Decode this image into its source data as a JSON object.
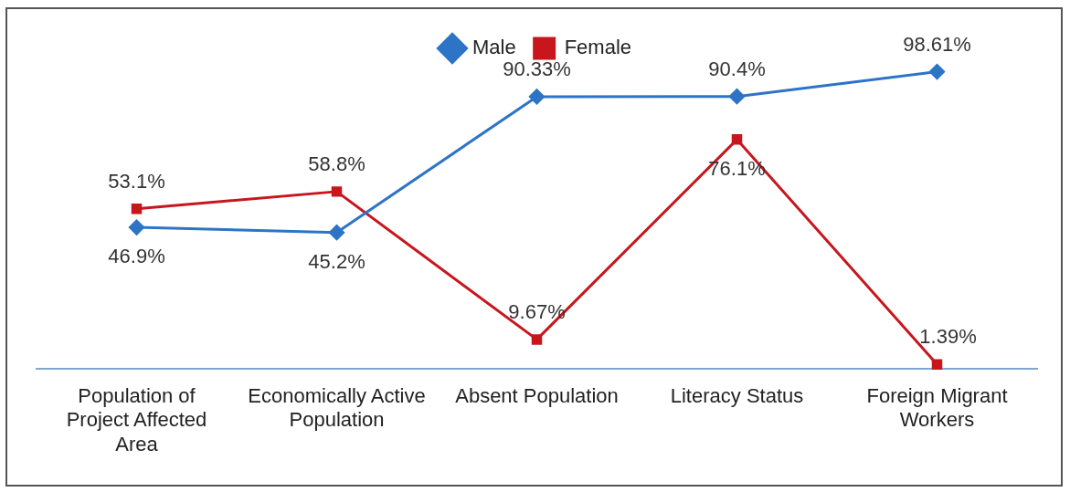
{
  "chart_data": {
    "type": "line",
    "categories": [
      "Population of Project Affected Area",
      "Economically Active Population",
      "Absent Population",
      "Literacy Status",
      "Foreign Migrant Workers"
    ],
    "series": [
      {
        "name": "Male",
        "color": "#2e74c6",
        "marker": "diamond",
        "values": [
          46.9,
          45.2,
          90.33,
          90.4,
          98.61
        ],
        "value_labels": [
          "46.9%",
          "45.2%",
          "90.33%",
          "90.4%",
          "98.61%"
        ]
      },
      {
        "name": "Female",
        "color": "#c8161d",
        "marker": "square",
        "values": [
          53.1,
          58.8,
          9.67,
          76.1,
          1.39
        ],
        "value_labels": [
          "53.1%",
          "58.8%",
          "9.67%",
          "76.1%",
          "1.39%"
        ]
      }
    ],
    "tick_labels": "x",
    "grid": false,
    "legend": "top",
    "line_style": "solid"
  }
}
